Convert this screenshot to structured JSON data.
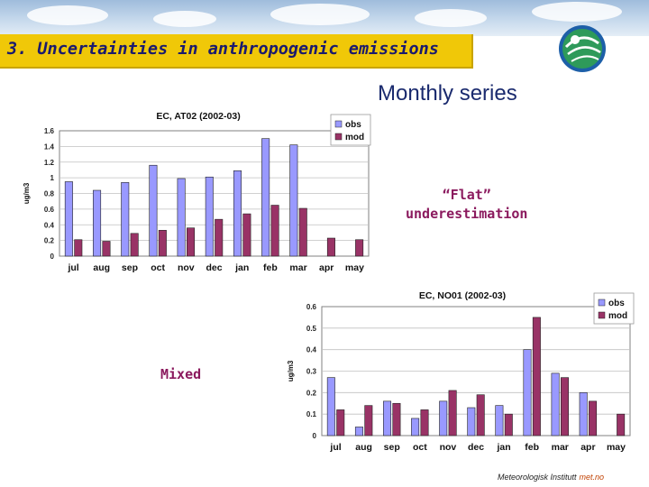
{
  "slide": {
    "title": "3. Uncertainties in anthropogenic emissions",
    "subtitle": "Monthly series",
    "note_flat_line1": "“Flat”",
    "note_flat_line2": "underestimation",
    "note_mixed": "Mixed",
    "footer_text": "Meteorologisk Institutt",
    "footer_brand": "met.no"
  },
  "colors": {
    "obs": "#9999ff",
    "mod": "#993366",
    "title_bg": "#f0c808",
    "title_text": "#1a1a6e"
  },
  "chart_data": [
    {
      "type": "bar",
      "title": "EC,  AT02 (2002-03)",
      "ylabel": "ug/m3",
      "xlabel": "",
      "categories": [
        "jul",
        "aug",
        "sep",
        "oct",
        "nov",
        "dec",
        "jan",
        "feb",
        "mar",
        "apr",
        "may"
      ],
      "ylim": [
        0,
        1.6
      ],
      "yticks": [
        "0",
        "0.2",
        "0.4",
        "0.6",
        "0.8",
        "1",
        "1.2",
        "1.4",
        "1.6"
      ],
      "legend_position": "top-right",
      "series": [
        {
          "name": "obs",
          "values": [
            0.95,
            0.84,
            0.94,
            1.16,
            0.99,
            1.01,
            1.09,
            1.5,
            1.42,
            null,
            null
          ]
        },
        {
          "name": "mod",
          "values": [
            0.21,
            0.19,
            0.29,
            0.33,
            0.36,
            0.47,
            0.54,
            0.65,
            0.61,
            0.23,
            0.21
          ]
        }
      ]
    },
    {
      "type": "bar",
      "title": "EC,  NO01 (2002-03)",
      "ylabel": "ug/m3",
      "xlabel": "",
      "categories": [
        "jul",
        "aug",
        "sep",
        "oct",
        "nov",
        "dec",
        "jan",
        "feb",
        "mar",
        "apr",
        "may"
      ],
      "ylim": [
        0,
        0.6
      ],
      "yticks": [
        "0",
        "0.1",
        "0.2",
        "0.3",
        "0.4",
        "0.5",
        "0.6"
      ],
      "legend_position": "top-right",
      "series": [
        {
          "name": "obs",
          "values": [
            0.27,
            0.04,
            0.16,
            0.08,
            0.16,
            0.13,
            0.14,
            0.4,
            0.29,
            0.2,
            null
          ]
        },
        {
          "name": "mod",
          "values": [
            0.12,
            0.14,
            0.15,
            0.12,
            0.21,
            0.19,
            0.1,
            0.55,
            0.27,
            0.16,
            0.1
          ]
        }
      ]
    }
  ]
}
